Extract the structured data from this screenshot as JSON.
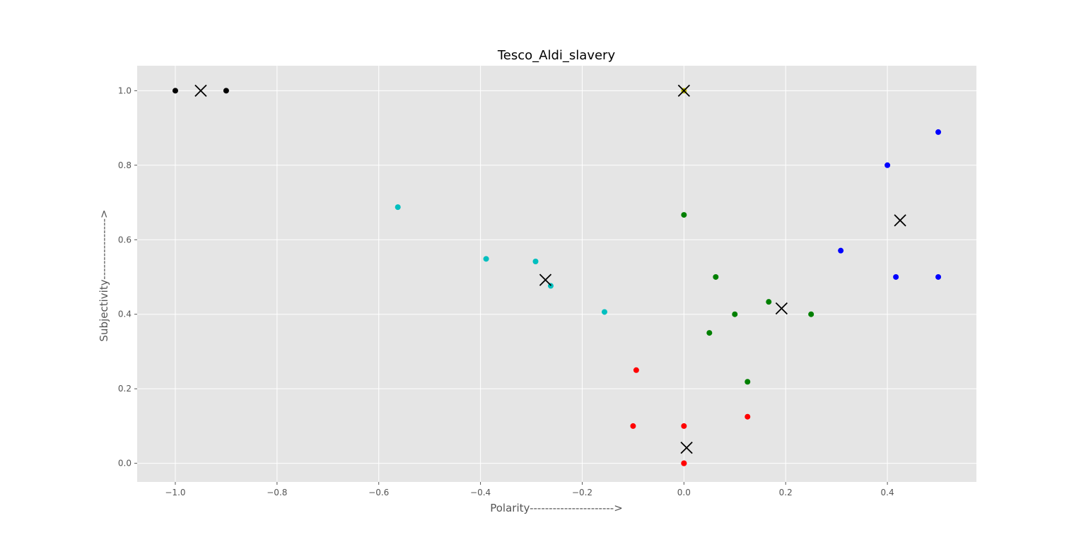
{
  "chart_data": {
    "type": "scatter",
    "title": "Tesco_Aldi_slavery",
    "xlabel": "Polarity---------------------->",
    "ylabel": "Subjectivity---------------->",
    "xlim": [
      -1.075,
      0.575
    ],
    "ylim": [
      -0.05,
      1.067
    ],
    "xticks": [
      -1.0,
      -0.8,
      -0.6,
      -0.4,
      -0.2,
      0.0,
      0.2,
      0.4
    ],
    "xtick_labels": [
      "−1.0",
      "−0.8",
      "−0.6",
      "−0.4",
      "−0.2",
      "0.0",
      "0.2",
      "0.4"
    ],
    "yticks": [
      0.0,
      0.2,
      0.4,
      0.6,
      0.8,
      1.0
    ],
    "ytick_labels": [
      "0.0",
      "0.2",
      "0.4",
      "0.6",
      "0.8",
      "1.0"
    ],
    "grid": true,
    "background": "#e5e5e5",
    "grid_color": "#ffffff",
    "series": [
      {
        "color": "#000000",
        "points": [
          [
            -1.0,
            1.0
          ],
          [
            -0.9,
            1.0
          ]
        ]
      },
      {
        "color": "#00bfbf",
        "points": [
          [
            -0.5625,
            0.6875
          ],
          [
            -0.3889,
            0.5486
          ],
          [
            -0.2917,
            0.5417
          ],
          [
            -0.2619,
            0.4762
          ],
          [
            -0.1562,
            0.4062
          ]
        ]
      },
      {
        "color": "#ff0000",
        "points": [
          [
            -0.0938,
            0.25
          ],
          [
            -0.1,
            0.1
          ],
          [
            0.0,
            0.1
          ],
          [
            0.0,
            0.0
          ],
          [
            0.0,
            0.0
          ],
          [
            0.125,
            0.125
          ]
        ]
      },
      {
        "color": "#008000",
        "points": [
          [
            0.0,
            0.6667
          ],
          [
            0.0625,
            0.5
          ],
          [
            0.1,
            0.4
          ],
          [
            0.1667,
            0.4333
          ],
          [
            0.25,
            0.4
          ],
          [
            0.05,
            0.35
          ],
          [
            0.125,
            0.2188
          ]
        ]
      },
      {
        "color": "#0000ff",
        "points": [
          [
            0.5,
            0.8889
          ],
          [
            0.4,
            0.8
          ],
          [
            0.3083,
            0.5708
          ],
          [
            0.4167,
            0.5
          ],
          [
            0.5,
            0.5
          ]
        ]
      },
      {
        "color": "#bfbf00",
        "points": [
          [
            0.0,
            1.0
          ]
        ]
      }
    ],
    "centroids": {
      "marker": "x",
      "color": "#000000",
      "points": [
        [
          -0.95,
          1.0
        ],
        [
          -0.2723,
          0.4921
        ],
        [
          0.0052,
          0.0417
        ],
        [
          0.1919,
          0.4155
        ],
        [
          0.425,
          0.6519
        ],
        [
          0.0,
          1.0
        ]
      ]
    }
  }
}
